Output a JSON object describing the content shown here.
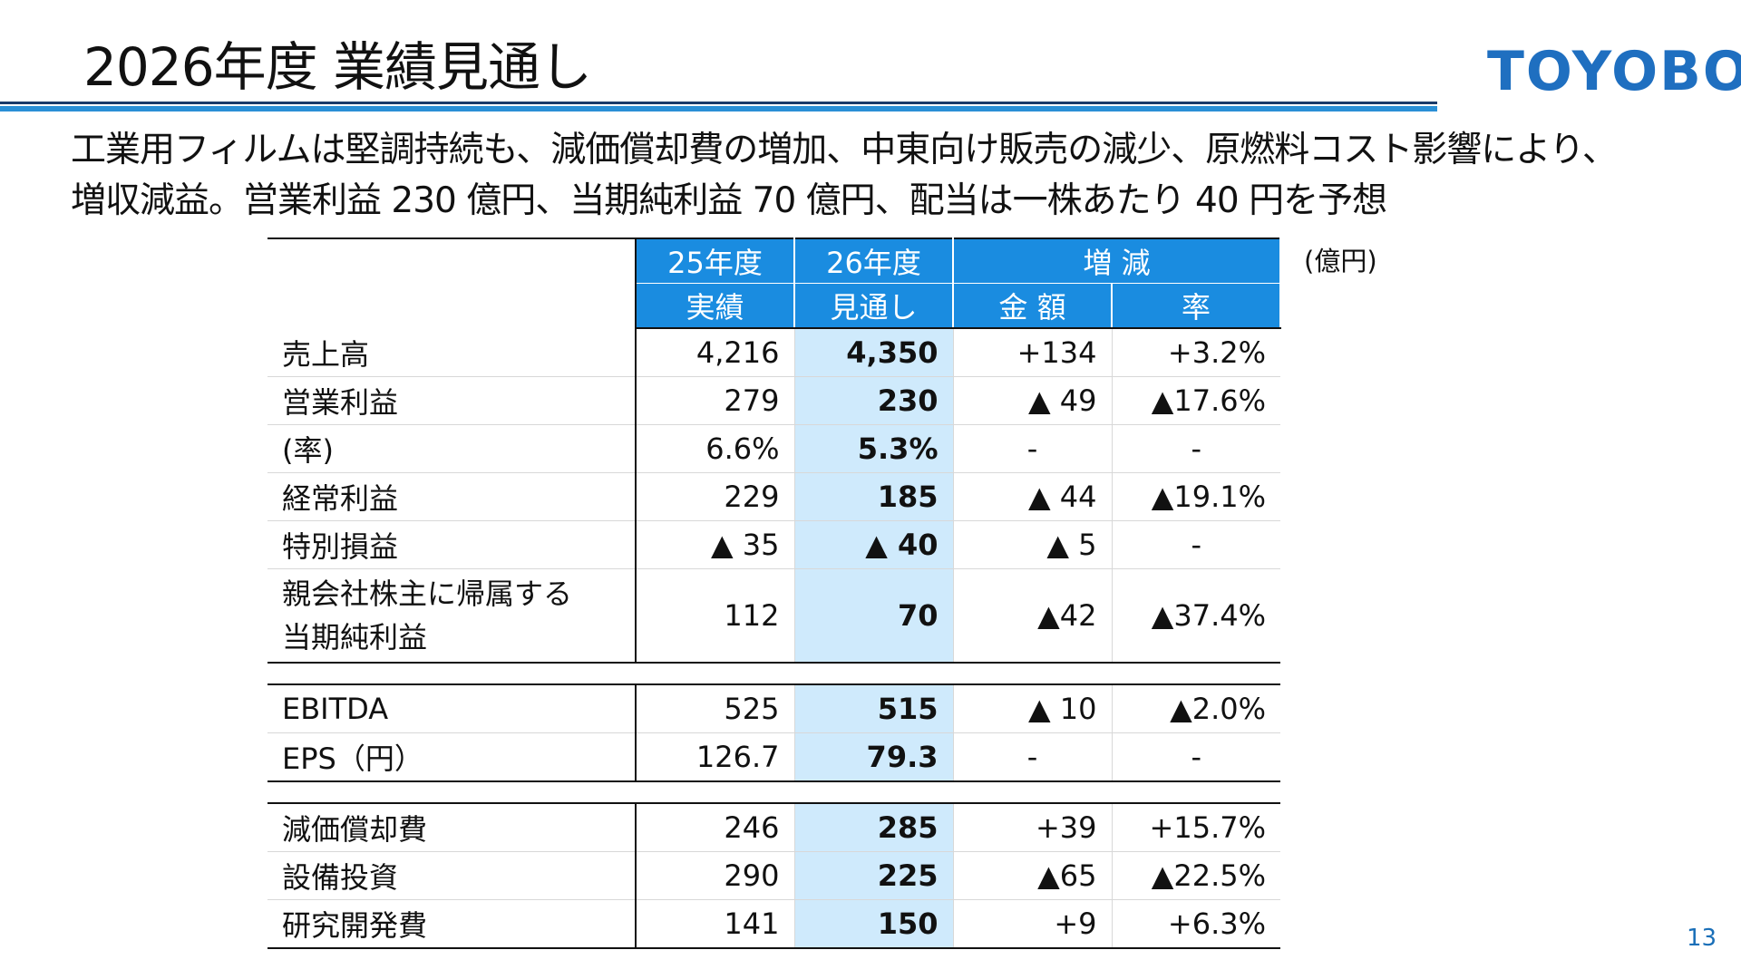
{
  "header": {
    "title": "2026年度 業績見通し",
    "logo": "TOYOBO",
    "page_number": "13"
  },
  "summary": {
    "line1": "工業用フィルムは堅調持続も、減価償却費の増加、中東向け販売の減少、原燃料コスト影響により、",
    "line2": "増収減益。営業利益 230 億円、当期純利益 70 億円、配当は一株あたり 40 円を予想"
  },
  "table": {
    "unit": "(億円)",
    "header_top": [
      "25年度",
      "26年度",
      "増 減"
    ],
    "header_bottom": [
      "実績",
      "見通し",
      "金 額",
      "率"
    ],
    "rows": [
      {
        "label": "売上高",
        "fy25": "4,216",
        "fy26": "4,350",
        "diff": "+134",
        "rate": "+3.2%"
      },
      {
        "label": "営業利益",
        "fy25": "279",
        "fy26": "230",
        "diff": "▲ 49",
        "rate": "▲17.6%"
      },
      {
        "label": "(率)",
        "fy25": "6.6%",
        "fy26": "5.3%",
        "diff": "-",
        "rate": "-"
      },
      {
        "label": "経常利益",
        "fy25": "229",
        "fy26": "185",
        "diff": "▲ 44",
        "rate": "▲19.1%"
      },
      {
        "label": "特別損益",
        "fy25": "▲ 35",
        "fy26": "▲ 40",
        "diff": "▲ 5",
        "rate": "-"
      },
      {
        "label_line1": "親会社株主に帰属する",
        "label_line2": "当期純利益",
        "fy25": "112",
        "fy26": "70",
        "diff": "▲42",
        "rate": "▲37.4%"
      },
      {
        "label": "EBITDA",
        "fy25": "525",
        "fy26": "515",
        "diff": "▲ 10",
        "rate": "▲2.0%"
      },
      {
        "label": "EPS（円）",
        "fy25": "126.7",
        "fy26": "79.3",
        "diff": "-",
        "rate": "-"
      },
      {
        "label": "減価償却費",
        "fy25": "246",
        "fy26": "285",
        "diff": "+39",
        "rate": "+15.7%"
      },
      {
        "label": "設備投資",
        "fy25": "290",
        "fy26": "225",
        "diff": "▲65",
        "rate": "▲22.5%"
      },
      {
        "label": "研究開発費",
        "fy25": "141",
        "fy26": "150",
        "diff": "+9",
        "rate": "+6.3%"
      }
    ]
  },
  "colors": {
    "header_blue": "#1a8ce0",
    "highlight_column": "#cfeafc",
    "logo_blue": "#1f6fc0",
    "rule_blue": "#2a8fd6"
  }
}
